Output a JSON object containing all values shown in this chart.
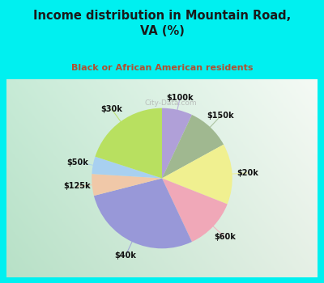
{
  "title": "Income distribution in Mountain Road,\nVA (%)",
  "subtitle": "Black or African American residents",
  "slices": [
    {
      "label": "$100k",
      "value": 7,
      "color": "#b0a0d8"
    },
    {
      "label": "$150k",
      "value": 10,
      "color": "#a0b890"
    },
    {
      "label": "$20k",
      "value": 14,
      "color": "#f0f090"
    },
    {
      "label": "$60k",
      "value": 12,
      "color": "#f0a8b8"
    },
    {
      "label": "$40k",
      "value": 28,
      "color": "#9898d8"
    },
    {
      "label": "$125k",
      "value": 5,
      "color": "#f0c8a8"
    },
    {
      "label": "$50k",
      "value": 4,
      "color": "#a8d0f0"
    },
    {
      "label": "$30k",
      "value": 20,
      "color": "#b8e060"
    }
  ],
  "background_top": "#00f0f0",
  "title_color": "#1a1a1a",
  "subtitle_color": "#b05030",
  "watermark": "City-Data.com",
  "startangle": 90,
  "chart_bg_left": "#c8e8d0",
  "chart_bg_right": "#e8f4ee",
  "border_color": "#00cccc"
}
